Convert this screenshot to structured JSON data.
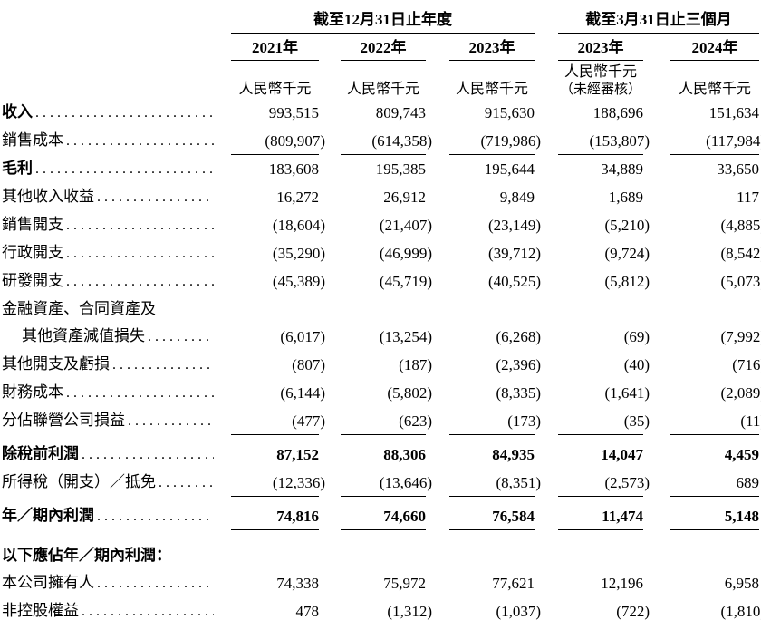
{
  "table": {
    "col_groups": [
      {
        "title": "截至12月31日止年度",
        "years": [
          "2021年",
          "2022年",
          "2023年"
        ]
      },
      {
        "title": "截至3月31日止三個月",
        "years": [
          "2023年",
          "2024年"
        ]
      }
    ],
    "unit_label": "人民幣千元",
    "unaudited_note": "（未經審核）",
    "unaudited_col_index": 3,
    "rows": [
      {
        "label": "收入",
        "bold_label": true,
        "bold_values": false,
        "leaders": true,
        "indent": false,
        "rule_below": false,
        "space_before": 0,
        "values": [
          "993,515",
          "809,743",
          "915,630",
          "188,696",
          "151,634"
        ]
      },
      {
        "label": "銷售成本",
        "bold_label": false,
        "bold_values": false,
        "leaders": true,
        "indent": false,
        "rule_below": true,
        "space_before": 0,
        "values": [
          "(809,907)",
          "(614,358)",
          "(719,986)",
          "(153,807)",
          "(117,984)"
        ]
      },
      {
        "label": "毛利",
        "bold_label": true,
        "bold_values": false,
        "leaders": true,
        "indent": false,
        "rule_below": false,
        "space_before": 0,
        "values": [
          "183,608",
          "195,385",
          "195,644",
          "34,889",
          "33,650"
        ]
      },
      {
        "label": "其他收入收益",
        "bold_label": false,
        "bold_values": false,
        "leaders": true,
        "indent": false,
        "rule_below": false,
        "space_before": 0,
        "values": [
          "16,272",
          "26,912",
          "9,849",
          "1,689",
          "117"
        ]
      },
      {
        "label": "銷售開支",
        "bold_label": false,
        "bold_values": false,
        "leaders": true,
        "indent": false,
        "rule_below": false,
        "space_before": 0,
        "values": [
          "(18,604)",
          "(21,407)",
          "(23,149)",
          "(5,210)",
          "(4,885)"
        ]
      },
      {
        "label": "行政開支",
        "bold_label": false,
        "bold_values": false,
        "leaders": true,
        "indent": false,
        "rule_below": false,
        "space_before": 0,
        "values": [
          "(35,290)",
          "(46,999)",
          "(39,712)",
          "(9,724)",
          "(8,542)"
        ]
      },
      {
        "label": "研發開支",
        "bold_label": false,
        "bold_values": false,
        "leaders": true,
        "indent": false,
        "rule_below": false,
        "space_before": 0,
        "values": [
          "(45,389)",
          "(45,719)",
          "(40,525)",
          "(5,812)",
          "(5,073)"
        ]
      },
      {
        "label": "金融資產、合同資產及",
        "bold_label": false,
        "bold_values": false,
        "leaders": false,
        "indent": false,
        "rule_below": false,
        "space_before": 0,
        "values": [
          "",
          "",
          "",
          "",
          ""
        ]
      },
      {
        "label": "其他資產減值損失",
        "bold_label": false,
        "bold_values": false,
        "leaders": true,
        "indent": true,
        "rule_below": false,
        "space_before": 0,
        "values": [
          "(6,017)",
          "(13,254)",
          "(6,268)",
          "(69)",
          "(7,992)"
        ]
      },
      {
        "label": "其他開支及虧損",
        "bold_label": false,
        "bold_values": false,
        "leaders": true,
        "indent": false,
        "rule_below": false,
        "space_before": 0,
        "values": [
          "(807)",
          "(187)",
          "(2,396)",
          "(40)",
          "(716)"
        ]
      },
      {
        "label": "財務成本",
        "bold_label": false,
        "bold_values": false,
        "leaders": true,
        "indent": false,
        "rule_below": false,
        "space_before": 0,
        "values": [
          "(6,144)",
          "(5,802)",
          "(8,335)",
          "(1,641)",
          "(2,089)"
        ]
      },
      {
        "label": "分佔聯營公司損益",
        "bold_label": false,
        "bold_values": false,
        "leaders": true,
        "indent": false,
        "rule_below": true,
        "space_before": 0,
        "values": [
          "(477)",
          "(623)",
          "(173)",
          "(35)",
          "(11)"
        ]
      },
      {
        "label": "除稅前利潤",
        "bold_label": true,
        "bold_values": true,
        "leaders": true,
        "indent": false,
        "rule_below": false,
        "space_before": 1,
        "values": [
          "87,152",
          "88,306",
          "84,935",
          "14,047",
          "4,459"
        ]
      },
      {
        "label": "所得稅（開支）／抵免",
        "bold_label": false,
        "bold_values": false,
        "leaders": true,
        "indent": false,
        "rule_below": true,
        "space_before": 0,
        "values": [
          "(12,336)",
          "(13,646)",
          "(8,351)",
          "(2,573)",
          "689"
        ]
      },
      {
        "label": "年／期內利潤",
        "bold_label": true,
        "bold_values": true,
        "leaders": true,
        "indent": false,
        "rule_below": true,
        "space_before": 1,
        "values": [
          "74,816",
          "74,660",
          "76,584",
          "11,474",
          "5,148"
        ]
      },
      {
        "label": "以下應佔年／期內利潤：",
        "bold_label": true,
        "bold_values": false,
        "leaders": false,
        "indent": false,
        "rule_below": false,
        "space_before": 2,
        "values": [
          "",
          "",
          "",
          "",
          ""
        ]
      },
      {
        "label": "本公司擁有人",
        "bold_label": false,
        "bold_values": false,
        "leaders": true,
        "indent": false,
        "rule_below": false,
        "space_before": 0,
        "values": [
          "74,338",
          "75,972",
          "77,621",
          "12,196",
          "6,958"
        ]
      },
      {
        "label": "非控股權益",
        "bold_label": false,
        "bold_values": false,
        "leaders": true,
        "indent": false,
        "rule_below": false,
        "space_before": 0,
        "values": [
          "478",
          "(1,312)",
          "(1,037)",
          "(722)",
          "(1,810)"
        ]
      }
    ]
  }
}
